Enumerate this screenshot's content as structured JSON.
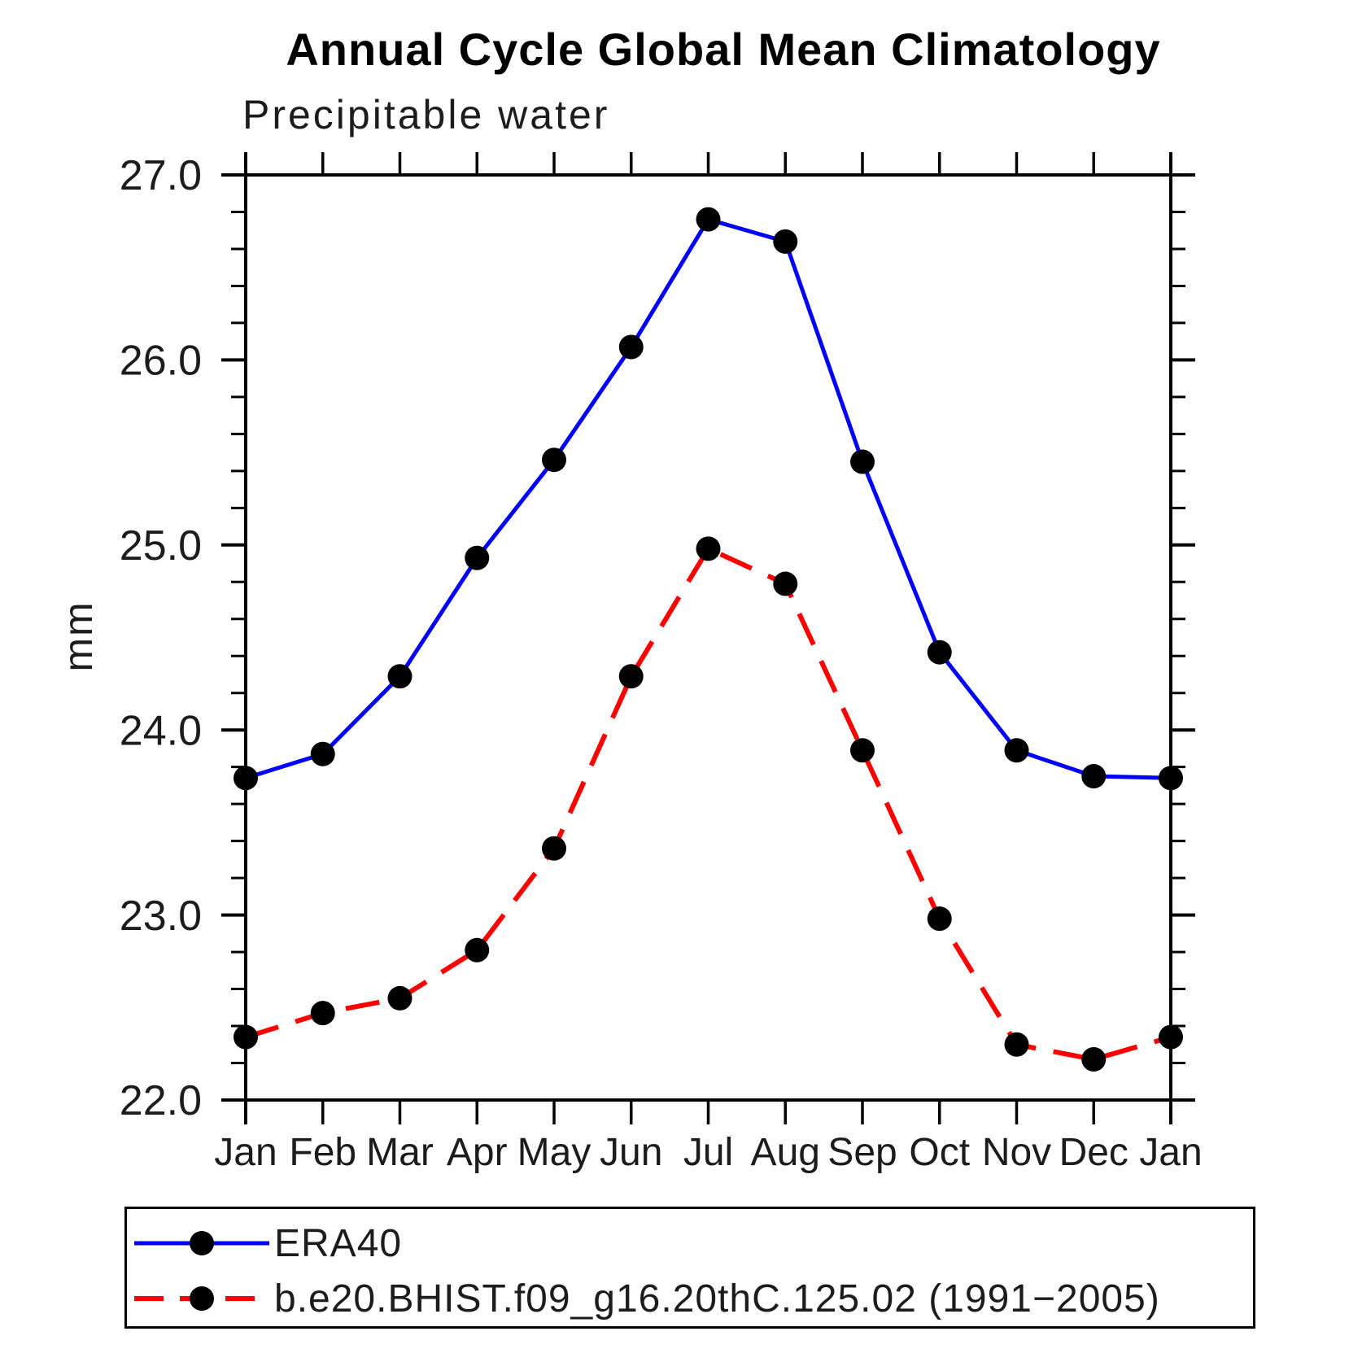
{
  "page": {
    "background": "#ffffff",
    "text_color": "#1c1c1c"
  },
  "chart_data": {
    "type": "line",
    "title": "Annual Cycle Global Mean Climatology",
    "subtitle": "Precipitable water",
    "ylabel": "mm",
    "xlabel": "",
    "ylim": [
      22.0,
      27.0
    ],
    "ytick_interval": 1.0,
    "ytick_minor_interval": 0.2,
    "ytick_values": [
      22.0,
      23.0,
      24.0,
      25.0,
      26.0,
      27.0
    ],
    "ytick_labels": [
      "22.0",
      "23.0",
      "24.0",
      "25.0",
      "26.0",
      "27.0"
    ],
    "categories": [
      "Jan",
      "Feb",
      "Mar",
      "Apr",
      "May",
      "Jun",
      "Jul",
      "Aug",
      "Sep",
      "Oct",
      "Nov",
      "Dec",
      "Jan"
    ],
    "grid": false,
    "legend_position": "bottom",
    "marker": {
      "shape": "circle",
      "color": "#000000",
      "radius": 15
    },
    "axis_color": "#000000",
    "series": [
      {
        "name": "ERA40",
        "color": "#0000ff",
        "style": "solid",
        "values": [
          23.74,
          23.87,
          24.29,
          24.93,
          25.46,
          26.07,
          26.76,
          26.64,
          25.45,
          24.42,
          23.89,
          23.75,
          23.74
        ]
      },
      {
        "name": "b.e20.BHIST.f09_g16.20thC.125.02 (1991−2005)",
        "color": "#ff0000",
        "style": "dashed",
        "values": [
          22.34,
          22.47,
          22.55,
          22.81,
          23.36,
          24.29,
          24.98,
          24.79,
          23.89,
          22.98,
          22.3,
          22.22,
          22.34
        ]
      }
    ]
  }
}
